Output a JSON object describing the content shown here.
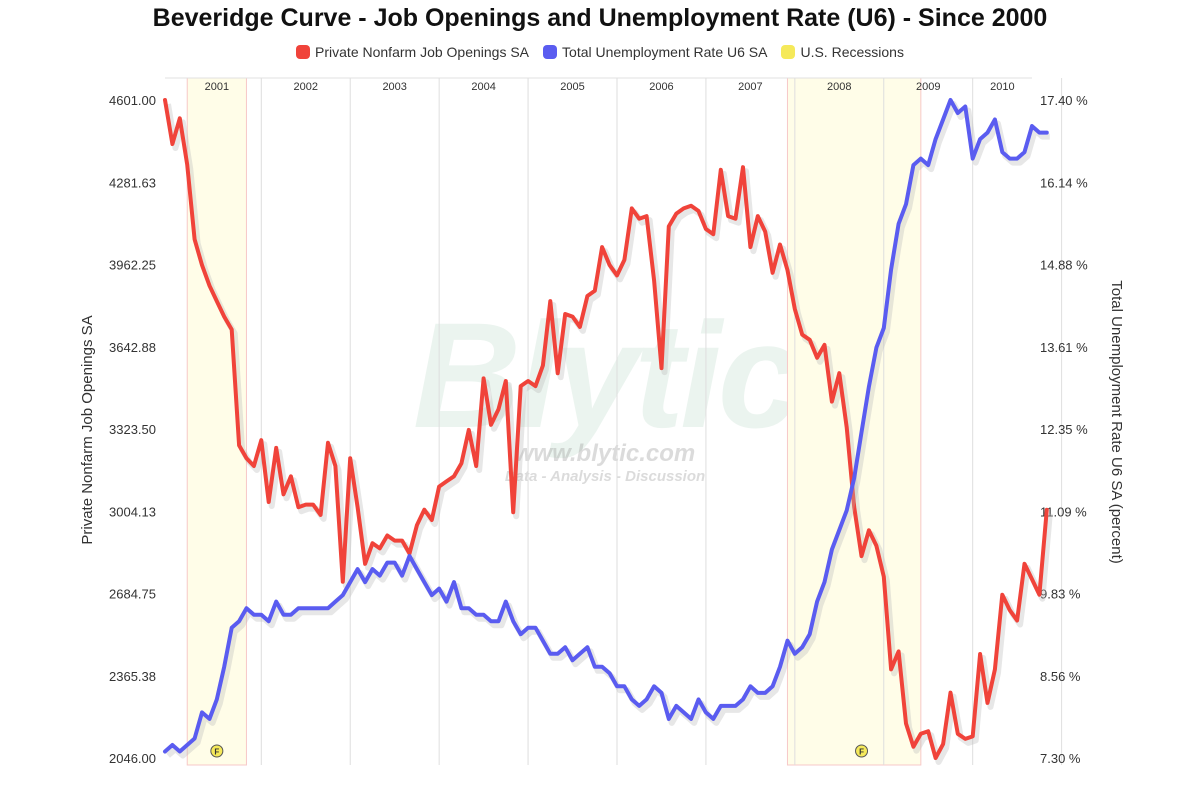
{
  "chart_data": {
    "type": "line",
    "title": "Beveridge Curve - Job Openings and Unemployment Rate (U6) - Since 2000",
    "legend": [
      {
        "name": "Private Nonfarm Job Openings SA",
        "color": "#f0433a"
      },
      {
        "name": "Total Unemployment Rate U6 SA",
        "color": "#5a5cf0"
      },
      {
        "name": "U.S. Recessions",
        "color": "#f5e95a"
      }
    ],
    "legend_placement": "top-center",
    "grid": true,
    "ylabel_left": "Private Nonfarm Job Openings SA",
    "ylabel_right": "Total Unemployment Rate U6 SA (percent)",
    "y_left_ticks": [
      "4601.00",
      "4281.63",
      "3962.25",
      "3642.88",
      "3323.50",
      "3004.13",
      "2684.75",
      "2365.38",
      "2046.00"
    ],
    "y_right_ticks": [
      "17.40 %",
      "16.14 %",
      "14.88 %",
      "13.61 %",
      "12.35 %",
      "11.09 %",
      "9.83 %",
      "8.56 %",
      "7.30 %"
    ],
    "ylim_left": [
      2046.0,
      4601.0
    ],
    "ylim_right": [
      7.3,
      17.4
    ],
    "x_labels": [
      "2001",
      "2002",
      "2003",
      "2004",
      "2005",
      "2006",
      "2007",
      "2008",
      "2009",
      "2010"
    ],
    "x_start": 2000.917,
    "x_end": 2010.667,
    "recessions": [
      [
        2001.167,
        2001.833
      ],
      [
        2007.917,
        2009.417
      ]
    ],
    "markers": [
      {
        "x": 2001.5,
        "label": "F"
      },
      {
        "x": 2008.75,
        "label": "F"
      }
    ],
    "series": [
      {
        "name": "Private Nonfarm Job Openings SA",
        "color": "#f0433a",
        "points": [
          [
            2000.917,
            4601
          ],
          [
            2001.0,
            4430
          ],
          [
            2001.083,
            4530
          ],
          [
            2001.167,
            4350
          ],
          [
            2001.25,
            4060
          ],
          [
            2001.333,
            3960
          ],
          [
            2001.417,
            3880
          ],
          [
            2001.5,
            3820
          ],
          [
            2001.583,
            3760
          ],
          [
            2001.667,
            3710
          ],
          [
            2001.75,
            3260
          ],
          [
            2001.833,
            3210
          ],
          [
            2001.917,
            3180
          ],
          [
            2002.0,
            3280
          ],
          [
            2002.083,
            3040
          ],
          [
            2002.167,
            3250
          ],
          [
            2002.25,
            3070
          ],
          [
            2002.333,
            3140
          ],
          [
            2002.417,
            3020
          ],
          [
            2002.5,
            3030
          ],
          [
            2002.583,
            3030
          ],
          [
            2002.667,
            2990
          ],
          [
            2002.75,
            3270
          ],
          [
            2002.833,
            3180
          ],
          [
            2002.917,
            2730
          ],
          [
            2003.0,
            3210
          ],
          [
            2003.083,
            3020
          ],
          [
            2003.167,
            2800
          ],
          [
            2003.25,
            2880
          ],
          [
            2003.333,
            2860
          ],
          [
            2003.417,
            2910
          ],
          [
            2003.5,
            2890
          ],
          [
            2003.583,
            2890
          ],
          [
            2003.667,
            2840
          ],
          [
            2003.75,
            2950
          ],
          [
            2003.833,
            3010
          ],
          [
            2003.917,
            2970
          ],
          [
            2004.0,
            3100
          ],
          [
            2004.083,
            3120
          ],
          [
            2004.167,
            3140
          ],
          [
            2004.25,
            3190
          ],
          [
            2004.333,
            3320
          ],
          [
            2004.417,
            3180
          ],
          [
            2004.5,
            3520
          ],
          [
            2004.583,
            3340
          ],
          [
            2004.667,
            3400
          ],
          [
            2004.75,
            3510
          ],
          [
            2004.833,
            3000
          ],
          [
            2004.917,
            3490
          ],
          [
            2005.0,
            3510
          ],
          [
            2005.083,
            3490
          ],
          [
            2005.167,
            3570
          ],
          [
            2005.25,
            3820
          ],
          [
            2005.333,
            3540
          ],
          [
            2005.417,
            3770
          ],
          [
            2005.5,
            3760
          ],
          [
            2005.583,
            3720
          ],
          [
            2005.667,
            3840
          ],
          [
            2005.75,
            3860
          ],
          [
            2005.833,
            4030
          ],
          [
            2005.917,
            3960
          ],
          [
            2006.0,
            3920
          ],
          [
            2006.083,
            3980
          ],
          [
            2006.167,
            4180
          ],
          [
            2006.25,
            4140
          ],
          [
            2006.333,
            4150
          ],
          [
            2006.417,
            3900
          ],
          [
            2006.5,
            3560
          ],
          [
            2006.583,
            4110
          ],
          [
            2006.667,
            4160
          ],
          [
            2006.75,
            4180
          ],
          [
            2006.833,
            4190
          ],
          [
            2006.917,
            4170
          ],
          [
            2007.0,
            4100
          ],
          [
            2007.083,
            4080
          ],
          [
            2007.167,
            4330
          ],
          [
            2007.25,
            4150
          ],
          [
            2007.333,
            4140
          ],
          [
            2007.417,
            4340
          ],
          [
            2007.5,
            4030
          ],
          [
            2007.583,
            4150
          ],
          [
            2007.667,
            4090
          ],
          [
            2007.75,
            3930
          ],
          [
            2007.833,
            4040
          ],
          [
            2007.917,
            3940
          ],
          [
            2008.0,
            3790
          ],
          [
            2008.083,
            3690
          ],
          [
            2008.167,
            3670
          ],
          [
            2008.25,
            3600
          ],
          [
            2008.333,
            3650
          ],
          [
            2008.417,
            3430
          ],
          [
            2008.5,
            3540
          ],
          [
            2008.583,
            3330
          ],
          [
            2008.667,
            3020
          ],
          [
            2008.75,
            2830
          ],
          [
            2008.833,
            2930
          ],
          [
            2008.917,
            2870
          ],
          [
            2009.0,
            2750
          ],
          [
            2009.083,
            2390
          ],
          [
            2009.167,
            2460
          ],
          [
            2009.25,
            2180
          ],
          [
            2009.333,
            2090
          ],
          [
            2009.417,
            2140
          ],
          [
            2009.5,
            2150
          ],
          [
            2009.583,
            2046
          ],
          [
            2009.667,
            2100
          ],
          [
            2009.75,
            2300
          ],
          [
            2009.833,
            2140
          ],
          [
            2009.917,
            2120
          ],
          [
            2010.0,
            2130
          ],
          [
            2010.083,
            2450
          ],
          [
            2010.167,
            2260
          ],
          [
            2010.25,
            2390
          ],
          [
            2010.333,
            2680
          ],
          [
            2010.417,
            2620
          ],
          [
            2010.5,
            2580
          ],
          [
            2010.583,
            2800
          ],
          [
            2010.667,
            2740
          ],
          [
            2010.75,
            2680
          ],
          [
            2010.833,
            3010
          ]
        ]
      },
      {
        "name": "Total Unemployment Rate U6 SA",
        "color": "#5a5cf0",
        "points": [
          [
            2000.917,
            7.4
          ],
          [
            2001.0,
            7.5
          ],
          [
            2001.083,
            7.4
          ],
          [
            2001.167,
            7.5
          ],
          [
            2001.25,
            7.6
          ],
          [
            2001.333,
            8.0
          ],
          [
            2001.417,
            7.9
          ],
          [
            2001.5,
            8.2
          ],
          [
            2001.583,
            8.7
          ],
          [
            2001.667,
            9.3
          ],
          [
            2001.75,
            9.4
          ],
          [
            2001.833,
            9.6
          ],
          [
            2001.917,
            9.5
          ],
          [
            2002.0,
            9.5
          ],
          [
            2002.083,
            9.4
          ],
          [
            2002.167,
            9.7
          ],
          [
            2002.25,
            9.5
          ],
          [
            2002.333,
            9.5
          ],
          [
            2002.417,
            9.6
          ],
          [
            2002.5,
            9.6
          ],
          [
            2002.583,
            9.6
          ],
          [
            2002.667,
            9.6
          ],
          [
            2002.75,
            9.6
          ],
          [
            2002.833,
            9.7
          ],
          [
            2002.917,
            9.8
          ],
          [
            2003.0,
            10.0
          ],
          [
            2003.083,
            10.2
          ],
          [
            2003.167,
            10.0
          ],
          [
            2003.25,
            10.2
          ],
          [
            2003.333,
            10.1
          ],
          [
            2003.417,
            10.3
          ],
          [
            2003.5,
            10.3
          ],
          [
            2003.583,
            10.1
          ],
          [
            2003.667,
            10.4
          ],
          [
            2003.75,
            10.2
          ],
          [
            2003.833,
            10.0
          ],
          [
            2003.917,
            9.8
          ],
          [
            2004.0,
            9.9
          ],
          [
            2004.083,
            9.7
          ],
          [
            2004.167,
            10.0
          ],
          [
            2004.25,
            9.6
          ],
          [
            2004.333,
            9.6
          ],
          [
            2004.417,
            9.5
          ],
          [
            2004.5,
            9.5
          ],
          [
            2004.583,
            9.4
          ],
          [
            2004.667,
            9.4
          ],
          [
            2004.75,
            9.7
          ],
          [
            2004.833,
            9.4
          ],
          [
            2004.917,
            9.2
          ],
          [
            2005.0,
            9.3
          ],
          [
            2005.083,
            9.3
          ],
          [
            2005.167,
            9.1
          ],
          [
            2005.25,
            8.9
          ],
          [
            2005.333,
            8.9
          ],
          [
            2005.417,
            9.0
          ],
          [
            2005.5,
            8.8
          ],
          [
            2005.583,
            8.9
          ],
          [
            2005.667,
            9.0
          ],
          [
            2005.75,
            8.7
          ],
          [
            2005.833,
            8.7
          ],
          [
            2005.917,
            8.6
          ],
          [
            2006.0,
            8.4
          ],
          [
            2006.083,
            8.4
          ],
          [
            2006.167,
            8.2
          ],
          [
            2006.25,
            8.1
          ],
          [
            2006.333,
            8.2
          ],
          [
            2006.417,
            8.4
          ],
          [
            2006.5,
            8.3
          ],
          [
            2006.583,
            7.9
          ],
          [
            2006.667,
            8.1
          ],
          [
            2006.75,
            8.0
          ],
          [
            2006.833,
            7.9
          ],
          [
            2006.917,
            8.2
          ],
          [
            2007.0,
            8.0
          ],
          [
            2007.083,
            7.9
          ],
          [
            2007.167,
            8.1
          ],
          [
            2007.25,
            8.1
          ],
          [
            2007.333,
            8.1
          ],
          [
            2007.417,
            8.2
          ],
          [
            2007.5,
            8.4
          ],
          [
            2007.583,
            8.3
          ],
          [
            2007.667,
            8.3
          ],
          [
            2007.75,
            8.4
          ],
          [
            2007.833,
            8.7
          ],
          [
            2007.917,
            9.1
          ],
          [
            2008.0,
            8.9
          ],
          [
            2008.083,
            9.0
          ],
          [
            2008.167,
            9.2
          ],
          [
            2008.25,
            9.7
          ],
          [
            2008.333,
            10.0
          ],
          [
            2008.417,
            10.5
          ],
          [
            2008.5,
            10.8
          ],
          [
            2008.583,
            11.1
          ],
          [
            2008.667,
            11.6
          ],
          [
            2008.75,
            12.3
          ],
          [
            2008.833,
            13.0
          ],
          [
            2008.917,
            13.6
          ],
          [
            2009.0,
            13.9
          ],
          [
            2009.083,
            14.8
          ],
          [
            2009.167,
            15.5
          ],
          [
            2009.25,
            15.8
          ],
          [
            2009.333,
            16.4
          ],
          [
            2009.417,
            16.5
          ],
          [
            2009.5,
            16.4
          ],
          [
            2009.583,
            16.8
          ],
          [
            2009.667,
            17.1
          ],
          [
            2009.75,
            17.4
          ],
          [
            2009.833,
            17.2
          ],
          [
            2009.917,
            17.3
          ],
          [
            2010.0,
            16.5
          ],
          [
            2010.083,
            16.8
          ],
          [
            2010.167,
            16.9
          ],
          [
            2010.25,
            17.1
          ],
          [
            2010.333,
            16.6
          ],
          [
            2010.417,
            16.5
          ],
          [
            2010.5,
            16.5
          ],
          [
            2010.583,
            16.6
          ],
          [
            2010.667,
            17.0
          ],
          [
            2010.75,
            16.9
          ],
          [
            2010.833,
            16.9
          ]
        ]
      }
    ]
  },
  "watermark": {
    "logo": "Blytic",
    "url": "www.blytic.com",
    "tagline": "Data - Analysis - Discussion"
  }
}
